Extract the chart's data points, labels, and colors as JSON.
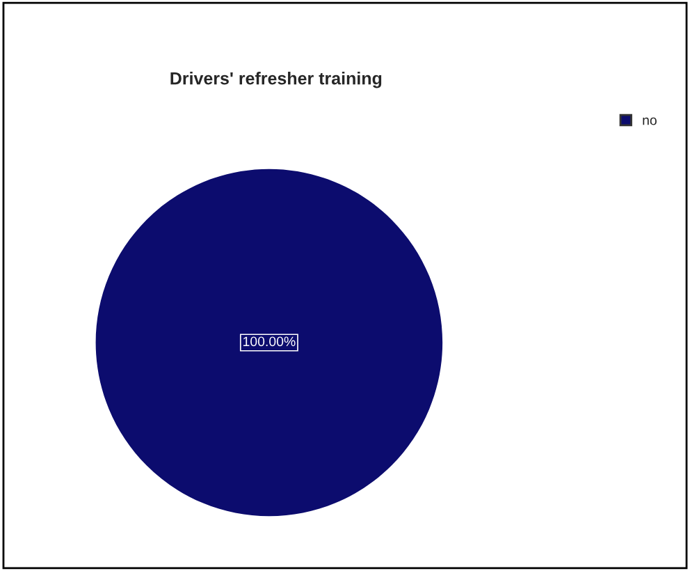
{
  "chart_data": {
    "type": "pie",
    "title": "Drivers' refresher training",
    "categories": [
      "no"
    ],
    "values": [
      100
    ],
    "colors": [
      "#0c0c6e"
    ],
    "value_labels": [
      "100.00%"
    ],
    "legend": "top right"
  }
}
